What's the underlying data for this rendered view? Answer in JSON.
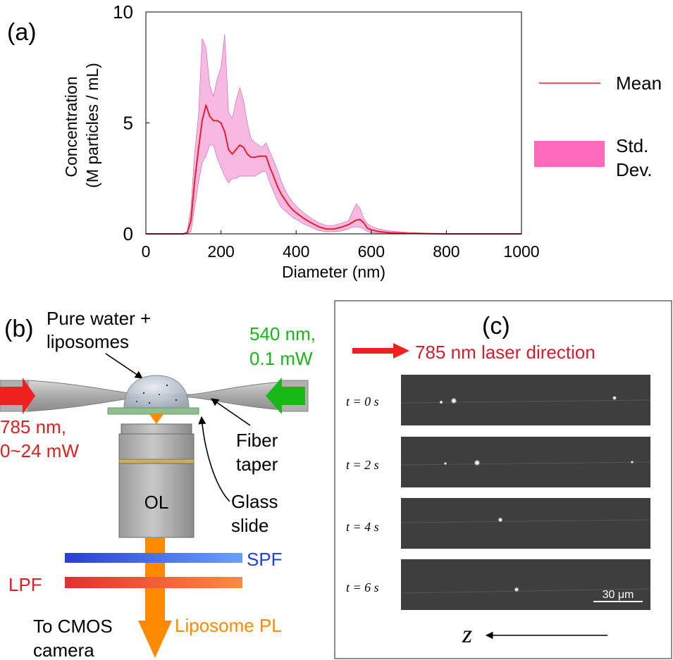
{
  "panel_a": {
    "label": "(a)",
    "chart_data": {
      "type": "area",
      "xlabel": "Diameter (nm)",
      "ylabel_line1": "Concentration",
      "ylabel_line2": "(M particles / mL)",
      "xlim": [
        0,
        1000
      ],
      "ylim": [
        0,
        10
      ],
      "xticks": [
        0,
        200,
        400,
        600,
        800,
        1000
      ],
      "yticks": [
        0,
        5,
        10
      ],
      "grid": false,
      "legend_position": "right",
      "series": [
        {
          "name": "Mean",
          "color": "#e8202a",
          "x": [
            0,
            100,
            110,
            120,
            130,
            140,
            150,
            160,
            170,
            180,
            190,
            200,
            210,
            220,
            230,
            240,
            250,
            260,
            270,
            280,
            290,
            300,
            310,
            320,
            330,
            340,
            350,
            360,
            370,
            380,
            390,
            400,
            420,
            440,
            460,
            480,
            500,
            520,
            540,
            550,
            560,
            570,
            580,
            590,
            600,
            620,
            650,
            700,
            750,
            800,
            1000
          ],
          "y": [
            0,
            0,
            0.05,
            0.6,
            2.4,
            3.8,
            5.1,
            5.8,
            5.3,
            5.1,
            5.1,
            5.0,
            4.6,
            3.8,
            3.6,
            3.8,
            4.0,
            3.9,
            3.6,
            3.45,
            3.45,
            3.5,
            3.5,
            3.5,
            3.0,
            2.6,
            2.15,
            1.8,
            1.55,
            1.3,
            1.1,
            0.95,
            0.7,
            0.5,
            0.32,
            0.22,
            0.22,
            0.3,
            0.42,
            0.52,
            0.62,
            0.65,
            0.5,
            0.25,
            0.18,
            0.1,
            0.05,
            0.02,
            0.01,
            0,
            0
          ]
        },
        {
          "name": "Std. Dev.",
          "color": "#ff4fb0",
          "x": [
            0,
            100,
            110,
            120,
            130,
            140,
            150,
            160,
            170,
            180,
            190,
            200,
            210,
            220,
            230,
            240,
            250,
            260,
            270,
            280,
            290,
            300,
            310,
            320,
            330,
            340,
            350,
            360,
            370,
            380,
            390,
            400,
            420,
            440,
            460,
            480,
            500,
            520,
            540,
            550,
            560,
            570,
            580,
            590,
            600,
            620,
            650,
            700,
            750,
            800,
            1000
          ],
          "upper": [
            0,
            0,
            0.1,
            1.2,
            3.7,
            5.3,
            8.8,
            8.4,
            6.7,
            6.2,
            7.0,
            7.5,
            9.0,
            5.5,
            5.2,
            6.0,
            6.6,
            6.0,
            5.0,
            4.3,
            4.1,
            4.0,
            3.9,
            4.1,
            3.7,
            3.3,
            2.9,
            2.4,
            2.0,
            1.7,
            1.45,
            1.25,
            0.95,
            0.7,
            0.5,
            0.38,
            0.38,
            0.48,
            0.6,
            1.0,
            1.35,
            1.15,
            0.7,
            0.45,
            0.35,
            0.22,
            0.13,
            0.06,
            0.03,
            0.01,
            0
          ],
          "lower": [
            0,
            0,
            0,
            0.1,
            1.2,
            2.3,
            3.2,
            3.5,
            4.0,
            4.0,
            3.4,
            3.0,
            2.6,
            2.3,
            2.5,
            2.5,
            2.6,
            2.6,
            2.6,
            2.6,
            2.6,
            2.7,
            2.8,
            2.8,
            2.3,
            1.9,
            1.5,
            1.2,
            1.05,
            0.9,
            0.75,
            0.65,
            0.45,
            0.3,
            0.15,
            0.1,
            0.1,
            0.13,
            0.22,
            0.3,
            0.32,
            0.3,
            0.22,
            0.1,
            0.05,
            0.02,
            0.01,
            0,
            0,
            0,
            0
          ]
        }
      ]
    }
  },
  "panel_b": {
    "label": "(b)",
    "sample_label_line1": "Pure water +",
    "sample_label_line2": "liposomes",
    "green_laser_line1": "540 nm,",
    "green_laser_line2": "0.1 mW",
    "red_laser_line1": "785 nm,",
    "red_laser_line2": "0~24 mW",
    "fiber_label_line1": "Fiber",
    "fiber_label_line2": "taper",
    "objective_label": "OL",
    "glass_label_line1": "Glass",
    "glass_label_line2": "slide",
    "spf_label": "SPF",
    "lpf_label": "LPF",
    "camera_label_line1": "To CMOS",
    "camera_label_line2": "camera",
    "pl_label": "Liposome PL",
    "colors": {
      "red": "#e02020",
      "green": "#18b818",
      "orange": "#ff8a00",
      "blue": "#2040e0"
    }
  },
  "panel_c": {
    "label": "(c)",
    "laser_direction": "785 nm laser direction",
    "frames": [
      {
        "time_label": "t = 0 s"
      },
      {
        "time_label": "t = 2 s"
      },
      {
        "time_label": "t = 4 s"
      },
      {
        "time_label": "t = 6 s"
      }
    ],
    "scale_bar": "30 μm",
    "axis_label": "z"
  }
}
